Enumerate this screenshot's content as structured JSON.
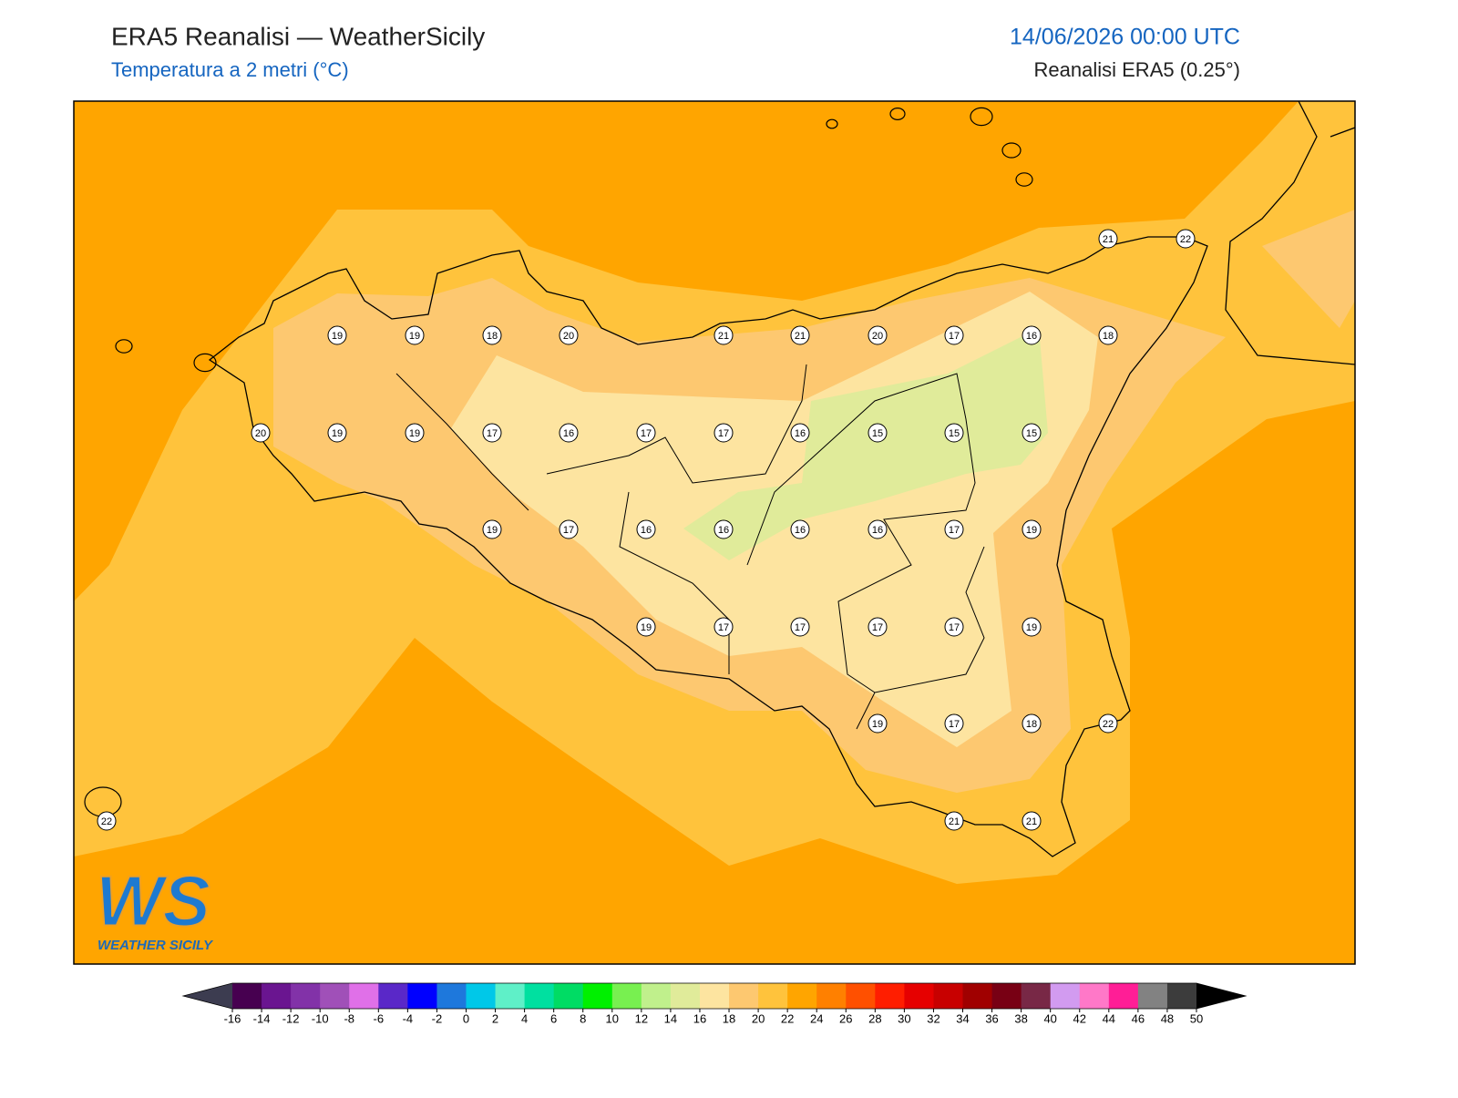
{
  "header": {
    "title": "ERA5 Reanalisi — WeatherSicily",
    "subtitle": "Temperatura a 2 metri (°C)",
    "datetime": "14/06/2026 00:00 UTC",
    "source": "Reanalisi ERA5 (0.25°)"
  },
  "map": {
    "values": [
      21,
      22,
      19,
      19,
      18,
      20,
      21,
      21,
      20,
      17,
      16,
      18,
      20,
      19,
      19,
      17,
      16,
      17,
      17,
      16,
      15,
      15,
      15,
      19,
      17,
      16,
      16,
      16,
      16,
      17,
      19,
      19,
      17,
      17,
      17,
      17,
      19,
      19,
      17,
      18,
      22,
      22,
      21,
      21
    ]
  },
  "colorbar": {
    "ticks": [
      -16,
      -14,
      -12,
      -10,
      -8,
      -6,
      -4,
      -2,
      0,
      2,
      4,
      6,
      8,
      10,
      12,
      14,
      16,
      18,
      20,
      22,
      24,
      26,
      28,
      30,
      32,
      34,
      36,
      38,
      40,
      42,
      44,
      46,
      48,
      50
    ],
    "colors": [
      "#470050",
      "#6a1590",
      "#8232a8",
      "#a050b8",
      "#e070e8",
      "#5a28c8",
      "#0000ff",
      "#1e78dc",
      "#00c8e8",
      "#5ff0c8",
      "#00e0a0",
      "#00dc64",
      "#00f000",
      "#78f050",
      "#c0f08c",
      "#e0eb9a",
      "#fde4a0",
      "#fdc870",
      "#ffc33c",
      "#ffa500",
      "#ff8000",
      "#ff5000",
      "#ff1e00",
      "#e60000",
      "#c80000",
      "#a00000",
      "#780014",
      "#782846",
      "#d29bf0",
      "#ff78c8",
      "#ff1e96",
      "#828282",
      "#3c3c3c"
    ],
    "extend_colors": [
      "#3c3c50",
      "#000000"
    ]
  },
  "logo": {
    "mark": "WS",
    "text": "WEATHER SICILY"
  }
}
